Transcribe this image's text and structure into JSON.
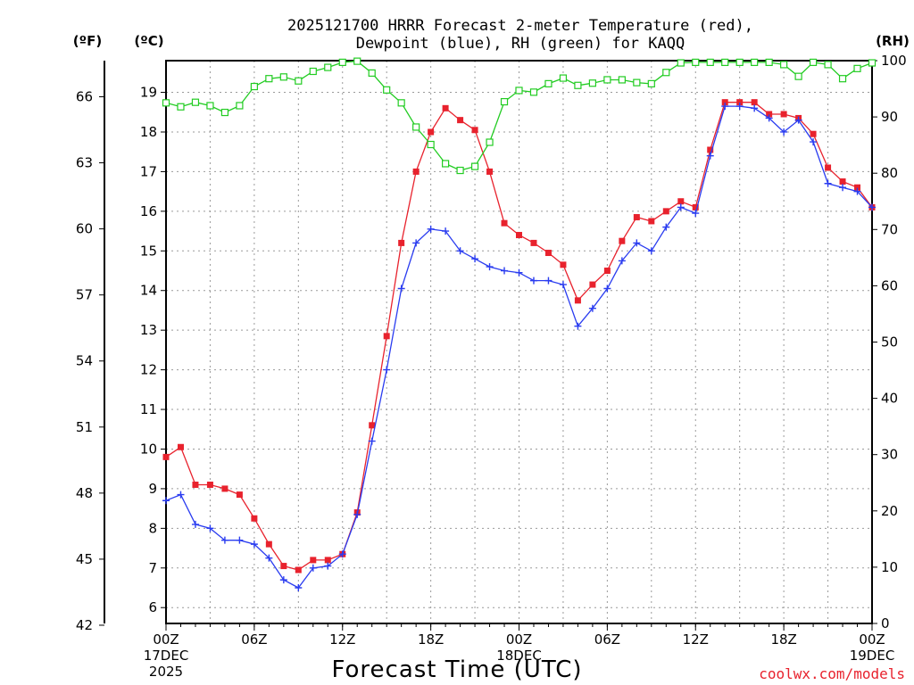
{
  "chart_data": {
    "type": "line",
    "title": [
      "2025121700 HRRR Forecast 2-meter Temperature (red),",
      "Dewpoint (blue), RH (green) for KAQQ"
    ],
    "xlabel": "Forecast Time (UTC)",
    "x_hours": [
      0,
      1,
      2,
      3,
      4,
      5,
      6,
      7,
      8,
      9,
      10,
      11,
      12,
      13,
      14,
      15,
      16,
      17,
      18,
      19,
      20,
      21,
      22,
      23,
      24,
      25,
      26,
      27,
      28,
      29,
      30,
      31,
      32,
      33,
      34,
      35,
      36,
      37,
      38,
      39,
      40,
      41,
      42,
      43,
      44,
      45,
      46,
      47,
      48
    ],
    "x_ticks": [
      {
        "hour": 0,
        "lines": [
          "00Z",
          "17DEC",
          "2025"
        ]
      },
      {
        "hour": 6,
        "lines": [
          "06Z"
        ]
      },
      {
        "hour": 12,
        "lines": [
          "12Z"
        ]
      },
      {
        "hour": 18,
        "lines": [
          "18Z"
        ]
      },
      {
        "hour": 24,
        "lines": [
          "00Z",
          "18DEC"
        ]
      },
      {
        "hour": 30,
        "lines": [
          "06Z"
        ]
      },
      {
        "hour": 36,
        "lines": [
          "12Z"
        ]
      },
      {
        "hour": 42,
        "lines": [
          "18Z"
        ]
      },
      {
        "hour": 48,
        "lines": [
          "00Z",
          "19DEC"
        ]
      }
    ],
    "ylim_c": [
      5.6,
      19.8
    ],
    "yticks_c": [
      6,
      7,
      8,
      9,
      10,
      11,
      12,
      13,
      14,
      15,
      16,
      17,
      18,
      19
    ],
    "yticks_f": [
      42,
      45,
      48,
      51,
      54,
      57,
      60,
      63,
      66
    ],
    "ylim_rh": [
      0,
      100
    ],
    "yticks_rh": [
      0,
      10,
      20,
      30,
      40,
      50,
      60,
      70,
      80,
      90,
      100
    ],
    "y_left_outer_unit": "(ºF)",
    "y_left_inner_unit": "(ºC)",
    "y_right_unit": "(RH)",
    "grid": true,
    "series": [
      {
        "name": "Temperature",
        "color": "#e8222d",
        "marker": "filled-square",
        "axis": "celsius",
        "values": [
          9.8,
          10.05,
          9.1,
          9.1,
          9.0,
          8.85,
          8.25,
          7.6,
          7.05,
          6.95,
          7.2,
          7.2,
          7.35,
          8.4,
          10.6,
          12.85,
          15.2,
          17.0,
          18.0,
          18.6,
          18.3,
          18.05,
          17.0,
          15.7,
          15.4,
          15.2,
          14.95,
          14.65,
          13.75,
          14.15,
          14.5,
          15.25,
          15.85,
          15.75,
          16.0,
          16.25,
          16.1,
          17.55,
          18.75,
          18.75,
          18.75,
          18.45,
          18.45,
          18.35,
          17.95,
          17.1,
          16.75,
          16.6,
          16.1
        ]
      },
      {
        "name": "Dewpoint",
        "color": "#2a3cf0",
        "marker": "plus",
        "axis": "celsius",
        "values": [
          8.7,
          8.85,
          8.1,
          8.0,
          7.7,
          7.7,
          7.6,
          7.25,
          6.7,
          6.5,
          7.0,
          7.05,
          7.35,
          8.35,
          10.2,
          12.0,
          14.05,
          15.2,
          15.55,
          15.5,
          15.0,
          14.8,
          14.6,
          14.5,
          14.45,
          14.25,
          14.25,
          14.15,
          13.1,
          13.55,
          14.05,
          14.75,
          15.2,
          15.0,
          15.6,
          16.1,
          15.95,
          17.4,
          18.65,
          18.65,
          18.6,
          18.35,
          18.0,
          18.3,
          17.75,
          16.7,
          16.6,
          16.5,
          16.1
        ]
      },
      {
        "name": "RH",
        "color": "#22cc22",
        "marker": "open-square",
        "axis": "rh",
        "values": [
          92.5,
          91.8,
          92.6,
          92.0,
          90.8,
          92.0,
          95.4,
          96.8,
          97.1,
          96.4,
          98.1,
          98.8,
          99.7,
          99.9,
          97.8,
          94.8,
          92.5,
          88.2,
          85.1,
          81.7,
          80.5,
          81.2,
          85.5,
          92.7,
          94.7,
          94.4,
          95.9,
          96.9,
          95.6,
          96.0,
          96.6,
          96.6,
          96.1,
          95.9,
          97.9,
          99.6,
          99.7,
          99.7,
          99.7,
          99.7,
          99.7,
          99.7,
          99.3,
          97.2,
          99.7,
          99.3,
          96.8,
          98.6,
          99.6
        ]
      }
    ]
  },
  "credit": "coolwx.com/models"
}
